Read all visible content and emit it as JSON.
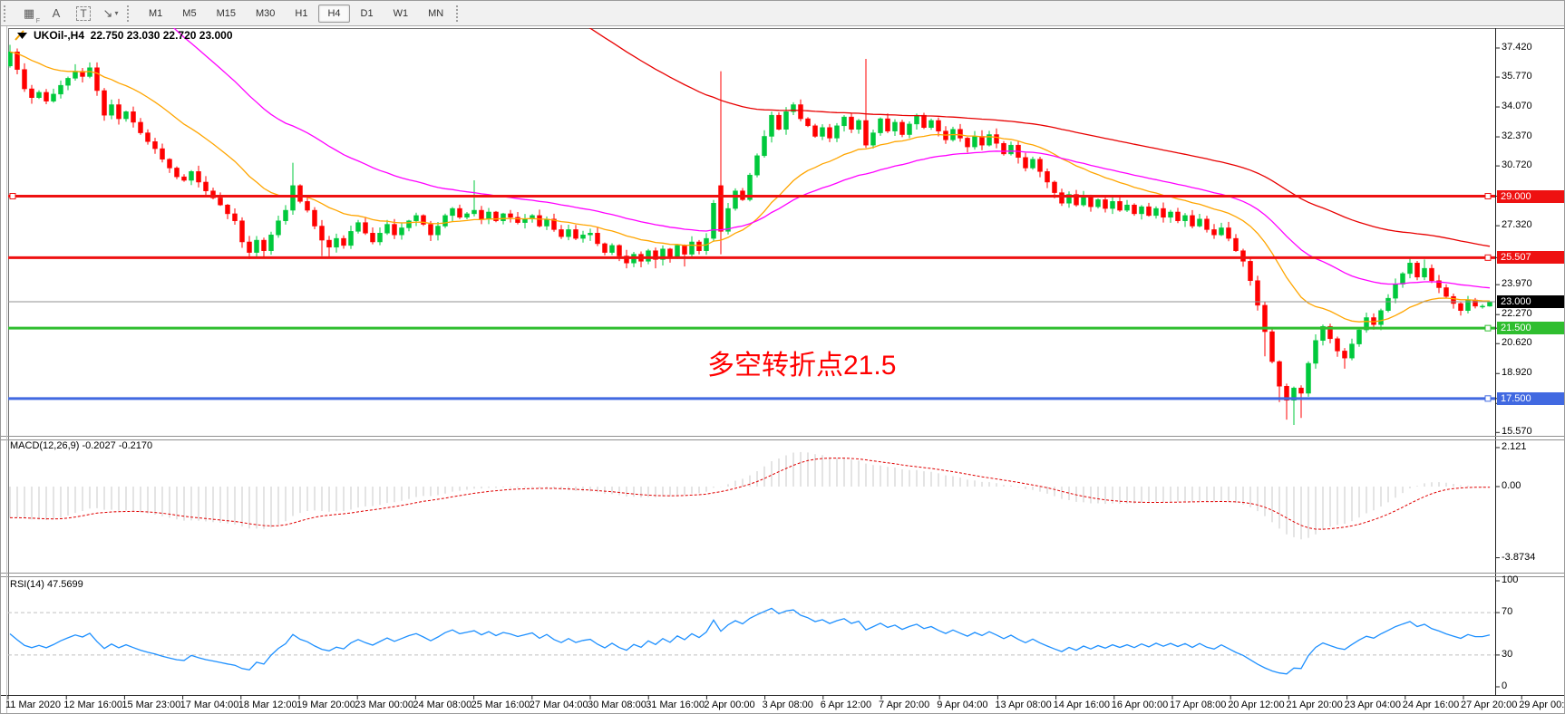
{
  "toolbar": {
    "tools": [
      {
        "id": "grid-f",
        "glyph": "▦",
        "sub": "F"
      },
      {
        "id": "label-a",
        "glyph": "A"
      },
      {
        "id": "text-t",
        "glyph": "T",
        "boxed": true
      },
      {
        "id": "arrows",
        "glyph": "↘",
        "caret": "▾"
      }
    ],
    "timeframes": [
      {
        "label": "M1"
      },
      {
        "label": "M5"
      },
      {
        "label": "M15"
      },
      {
        "label": "M30"
      },
      {
        "label": "H1"
      },
      {
        "label": "H4",
        "active": true
      },
      {
        "label": "D1"
      },
      {
        "label": "W1"
      },
      {
        "label": "MN"
      }
    ]
  },
  "chart": {
    "title": "UKOil-,H4  22.750 23.030 22.720 23.000",
    "symbol": "UKOil-",
    "timeframe": "H4"
  },
  "colors": {
    "bull": "#00C93C",
    "bear": "#FF0000",
    "ma_fast": "#FFA500",
    "ma_mid": "#FF00FF",
    "ma_slow": "#E80000",
    "hist": "#C9C9C9",
    "macd_signal": "#E00000",
    "rsi": "#1E90FF",
    "line_red": "#EE1111",
    "line_green": "#2FBE2F",
    "line_blue": "#4169E1",
    "current_line": "#909090",
    "current_badge": "#000000",
    "annotation": "#FF0000"
  },
  "chart_data": {
    "type": "candlestick",
    "title": "UKOil-,H4",
    "ohlc_display": {
      "open": "22.750",
      "high": "23.030",
      "low": "22.720",
      "close": "23.000"
    },
    "x_labels": [
      "11 Mar 2020",
      "12 Mar 16:00",
      "15 Mar 23:00",
      "17 Mar 04:00",
      "18 Mar 12:00",
      "19 Mar 20:00",
      "23 Mar 00:00",
      "24 Mar 08:00",
      "25 Mar 16:00",
      "27 Mar 04:00",
      "30 Mar 08:00",
      "31 Mar 16:00",
      "2 Apr 00:00",
      "3 Apr 08:00",
      "6 Apr 12:00",
      "7 Apr 20:00",
      "9 Apr 04:00",
      "13 Apr 08:00",
      "14 Apr 16:00",
      "16 Apr 00:00",
      "17 Apr 08:00",
      "20 Apr 12:00",
      "21 Apr 20:00",
      "23 Apr 04:00",
      "24 Apr 16:00",
      "27 Apr 20:00",
      "29 Apr 00:00"
    ],
    "y_axis_ticks": [
      37.42,
      35.77,
      34.07,
      32.37,
      30.72,
      27.32,
      23.97,
      22.27,
      20.62,
      18.92,
      17.22,
      15.57
    ],
    "y_range": [
      15.2,
      38.7
    ],
    "closes": [
      37.2,
      36.2,
      35.1,
      34.6,
      34.9,
      34.4,
      34.8,
      35.3,
      35.7,
      36.1,
      35.8,
      36.3,
      35.0,
      33.6,
      34.2,
      33.4,
      33.8,
      33.2,
      32.6,
      32.1,
      31.7,
      31.1,
      30.6,
      30.1,
      29.9,
      30.4,
      29.8,
      29.3,
      28.9,
      28.5,
      28.0,
      27.6,
      26.4,
      25.8,
      26.5,
      25.9,
      26.8,
      27.6,
      28.2,
      29.6,
      28.7,
      28.2,
      27.3,
      26.5,
      26.1,
      26.6,
      26.2,
      27.0,
      27.5,
      26.9,
      26.4,
      26.9,
      27.4,
      26.8,
      27.2,
      27.6,
      27.9,
      27.4,
      26.8,
      27.3,
      27.9,
      28.3,
      27.8,
      28.0,
      28.2,
      27.7,
      28.1,
      27.6,
      28.0,
      27.8,
      27.5,
      27.7,
      27.9,
      27.3,
      27.7,
      27.1,
      26.7,
      27.1,
      26.6,
      26.8,
      26.9,
      26.3,
      25.8,
      26.2,
      25.6,
      25.2,
      25.7,
      25.3,
      25.9,
      25.4,
      26.0,
      25.5,
      26.2,
      25.7,
      26.4,
      25.9,
      26.6,
      28.6,
      27.0,
      28.3,
      29.3,
      28.8,
      30.2,
      31.3,
      32.4,
      33.6,
      32.8,
      33.8,
      34.2,
      33.4,
      33.0,
      32.4,
      32.9,
      32.3,
      33.0,
      33.5,
      32.8,
      33.3,
      31.9,
      32.6,
      33.4,
      32.7,
      33.2,
      32.5,
      33.1,
      33.6,
      32.9,
      33.3,
      32.7,
      32.2,
      32.8,
      32.3,
      31.8,
      32.4,
      31.9,
      32.5,
      32.0,
      31.4,
      31.9,
      31.2,
      30.6,
      31.1,
      30.4,
      29.8,
      29.2,
      28.6,
      29.1,
      28.5,
      29.0,
      28.4,
      28.8,
      28.3,
      28.7,
      28.2,
      28.5,
      28.0,
      28.4,
      27.9,
      28.3,
      27.8,
      28.1,
      27.6,
      27.9,
      27.3,
      27.7,
      27.1,
      26.8,
      27.2,
      26.6,
      25.9,
      25.3,
      24.2,
      22.8,
      21.3,
      19.6,
      18.2,
      17.4,
      18.1,
      17.8,
      19.5,
      20.8,
      21.6,
      20.9,
      20.2,
      19.8,
      20.6,
      21.4,
      22.1,
      21.7,
      22.5,
      23.2,
      24.0,
      24.6,
      25.2,
      24.4,
      24.9,
      24.2,
      23.8,
      23.3,
      22.9,
      22.5,
      23.1,
      22.75,
      22.75,
      23.0
    ],
    "open_overrides": {
      "0": 36.4,
      "98": 29.6
    },
    "wick_overrides": {
      "0": {
        "h": 37.6
      },
      "9": {
        "h": 36.5
      },
      "11": {
        "h": 36.6
      },
      "33": {
        "l": 25.42
      },
      "35": {
        "l": 25.45
      },
      "39": {
        "h": 30.9
      },
      "43": {
        "l": 25.6
      },
      "44": {
        "l": 25.5
      },
      "64": {
        "h": 29.9
      },
      "85": {
        "l": 24.9
      },
      "89": {
        "l": 24.9
      },
      "93": {
        "l": 25.0
      },
      "98": {
        "h": 36.1,
        "l": 25.7
      },
      "118": {
        "h": 36.8
      },
      "173": {
        "l": 19.9
      },
      "175": {
        "l": 17.3
      },
      "176": {
        "l": 16.3
      },
      "177": {
        "l": 16.0
      },
      "178": {
        "l": 16.4
      },
      "184": {
        "l": 19.2
      },
      "193": {
        "h": 25.45
      },
      "195": {
        "h": 25.4
      },
      "204": {
        "h": 23.03,
        "l": 22.72
      }
    },
    "moving_averages": [
      {
        "name": "ma-fast-orange",
        "period": 21,
        "seed": null,
        "color_key": "ma_fast"
      },
      {
        "name": "ma-mid-magenta",
        "period": 44,
        "seed": 48,
        "color_key": "ma_mid"
      },
      {
        "name": "ma-slow-red",
        "period": 90,
        "seed": 90,
        "color_key": "ma_slow"
      }
    ],
    "horizontal_lines": [
      {
        "value": 29.0,
        "label": "29.000",
        "color_key": "line_red",
        "handles": [
          "left",
          "right"
        ]
      },
      {
        "value": 25.507,
        "label": "25.507",
        "color_key": "line_red",
        "handles": [
          "right"
        ]
      },
      {
        "value": 21.5,
        "label": "21.500",
        "color_key": "line_green",
        "handles": [
          "right"
        ]
      },
      {
        "value": 17.5,
        "label": "17.500",
        "color_key": "line_blue",
        "handles": [
          "right"
        ]
      }
    ],
    "current_price": {
      "value": 23.0,
      "label": "23.000"
    },
    "macd": {
      "label": "MACD(12,26,9) -0.2027 -0.2170",
      "fast": 12,
      "slow": 26,
      "signal": 9,
      "value": -0.2027,
      "signal_value": -0.217,
      "axis_labels": [
        {
          "v": 2.121,
          "t": "2.121"
        },
        {
          "v": 0,
          "t": "0.00"
        },
        {
          "v": -3.8734,
          "t": "-3.8734"
        }
      ]
    },
    "rsi": {
      "label": "RSI(14) 47.5699",
      "period": 14,
      "value": 47.5699,
      "axis_labels": [
        {
          "v": 100,
          "t": "100"
        },
        {
          "v": 70,
          "t": "70"
        },
        {
          "v": 30,
          "t": "30"
        },
        {
          "v": 0,
          "t": "0"
        }
      ],
      "levels": [
        70,
        30
      ]
    },
    "annotation": {
      "text": "多空转折点21.5"
    }
  }
}
